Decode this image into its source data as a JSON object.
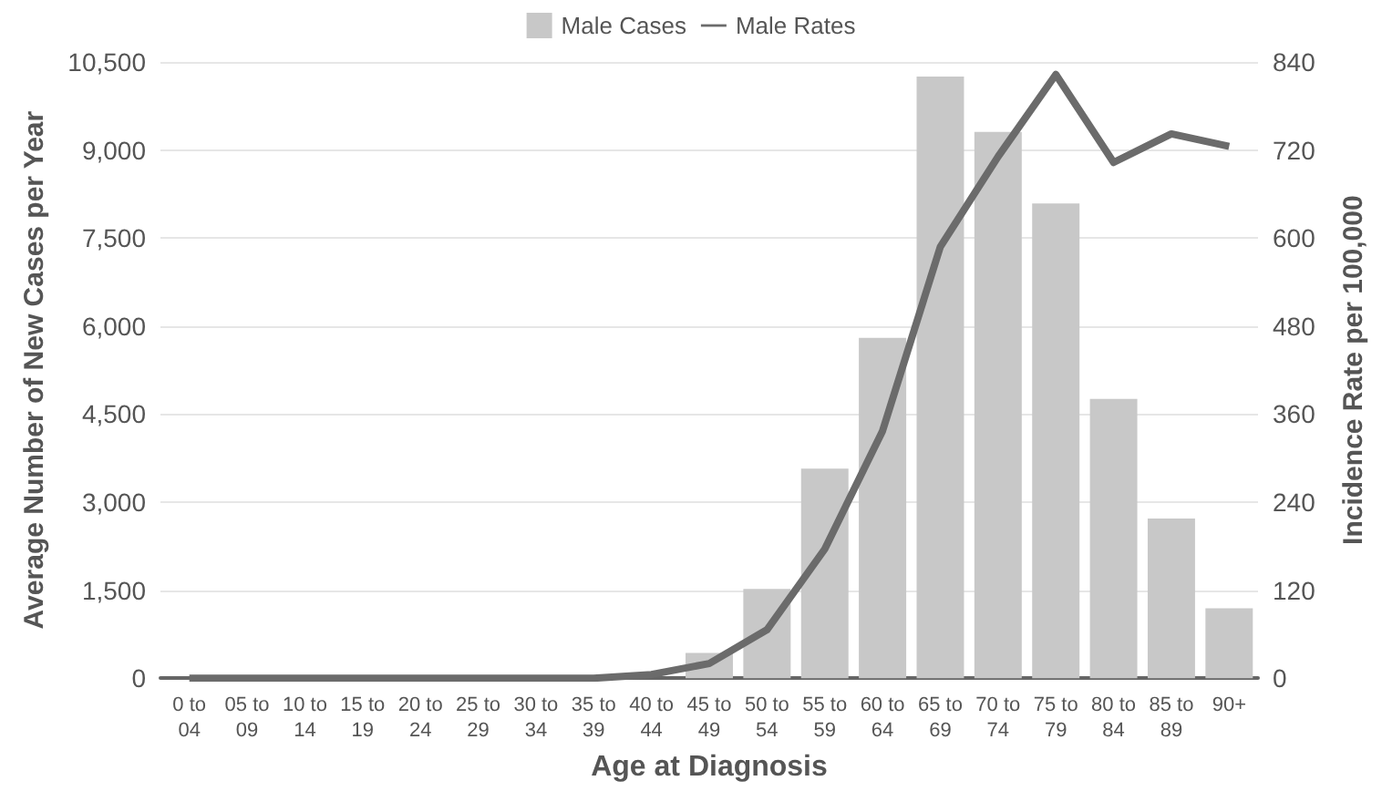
{
  "chart_data": {
    "type": "bar",
    "xlabel": "Age at Diagnosis",
    "ylabel": "Average Number of New Cases per Year",
    "y2label": "Incidence Rate per 100,000",
    "categories": [
      "0 to 04",
      "05 to 09",
      "10 to 14",
      "15 to 19",
      "20 to 24",
      "25 to 29",
      "30 to 34",
      "35 to 39",
      "40 to 44",
      "45 to 49",
      "50 to 54",
      "55 to 59",
      "60 to 64",
      "65 to 69",
      "70 to 74",
      "75 to 79",
      "80 to 84",
      "85 to 89",
      "90+"
    ],
    "series": [
      {
        "name": "Male Cases",
        "color": "#c8c8c8",
        "values": [
          0,
          0,
          0,
          0,
          0,
          0,
          0,
          0,
          0,
          430,
          1520,
          3570,
          5800,
          10250,
          9310,
          8090,
          4760,
          2720,
          1190
        ]
      },
      {
        "name": "Male Rates",
        "type": "line",
        "axis": "y2",
        "color": "#6b6b6b",
        "values": [
          0,
          0,
          0,
          0,
          0,
          0,
          0,
          0,
          5,
          20,
          66,
          176,
          337,
          588,
          711,
          823,
          703,
          742,
          725
        ]
      }
    ],
    "ylim": [
      0,
      10500
    ],
    "yticks": [
      0,
      {
        "value": 1500,
        "label": "1,500"
      },
      {
        "value": 3000,
        "label": "3,000"
      },
      {
        "value": 4500,
        "label": "4,500"
      },
      {
        "value": 6000,
        "label": "6,000"
      },
      {
        "value": 7500,
        "label": "7,500"
      },
      {
        "value": 9000,
        "label": "9,000"
      },
      {
        "value": 10500,
        "label": "10,500"
      }
    ],
    "y2lim": [
      0,
      840
    ],
    "y2ticks": [
      0,
      120,
      240,
      360,
      480,
      600,
      720,
      840
    ],
    "grid": "y",
    "legend": "top",
    "marker": "none",
    "line_style": "solid"
  }
}
